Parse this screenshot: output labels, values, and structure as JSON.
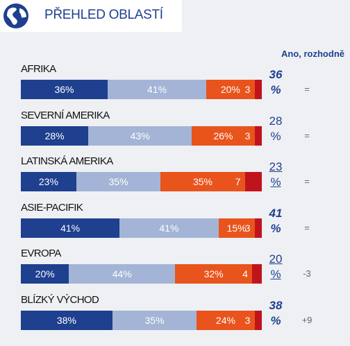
{
  "chart_data": {
    "type": "stacked_bar_h",
    "title": "PŘEHLED OBLASTÍ",
    "top_header": "Ano, rozhodně",
    "xlim": [
      0,
      100
    ],
    "categories": [
      "AFRIKA",
      "SEVERNÍ AMERIKA",
      "LATINSKÁ AMERIKA",
      "ASIE-PACIFIK",
      "EVROPA",
      "BLÍZKÝ VÝCHOD"
    ],
    "series": [
      {
        "color": "#1f3f8f",
        "values": [
          36,
          28,
          23,
          41,
          20,
          38
        ],
        "value_labels": [
          "36%",
          "28%",
          "23%",
          "41%",
          "20%",
          "38%"
        ]
      },
      {
        "color": "#a3b4d6",
        "values": [
          41,
          43,
          35,
          41,
          44,
          35
        ],
        "value_labels": [
          "41%",
          "43%",
          "35%",
          "41%",
          "44%",
          "35%"
        ]
      },
      {
        "color": "#e8541c",
        "values": [
          20,
          26,
          35,
          15,
          32,
          24
        ],
        "value_labels": [
          "20%",
          "26%",
          "35%",
          "15%",
          "32%",
          "24%"
        ]
      },
      {
        "color": "#c0141c",
        "values": [
          3,
          3,
          7,
          3,
          4,
          3
        ]
      }
    ],
    "top_values": [
      36,
      28,
      23,
      41,
      20,
      38
    ],
    "top_labels": [
      "36 %",
      "28 %",
      "23 %",
      "41 %",
      "20 %",
      "38 %"
    ],
    "top_styles": [
      "bold-italic",
      "normal",
      "underline",
      "bold-italic",
      "underline",
      "bold-italic"
    ],
    "changes": [
      "=",
      "=",
      "=",
      "=",
      "-3",
      "+9"
    ]
  }
}
